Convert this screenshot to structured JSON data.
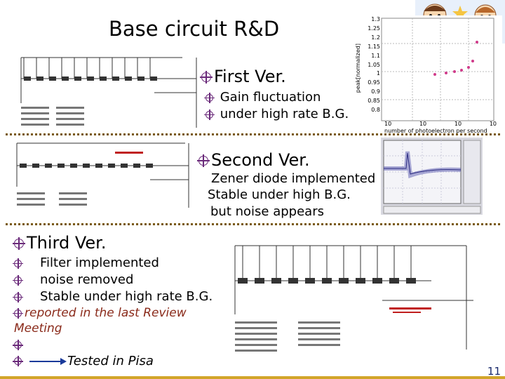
{
  "title": "Base circuit R&D",
  "first": {
    "heading": "First Ver.",
    "items": [
      "Gain fluctuation",
      "under high rate B.G."
    ],
    "plot": {
      "ylabel": "peak[normalized]",
      "xlabel": "number of photoelectron per second",
      "yticks": [
        "1.3",
        "1.25",
        "1.2",
        "1.15",
        "1.1",
        "1.05",
        "1",
        "0.95",
        "0.9",
        "0.85",
        "0.8"
      ],
      "xticks": [
        "10",
        "10",
        "10",
        "10"
      ]
    }
  },
  "second": {
    "heading": "Second Ver.",
    "lines": [
      "Zener diode implemented",
      "Stable under high B.G.",
      "but noise appears"
    ]
  },
  "third": {
    "heading": "Third Ver.",
    "items": [
      "Filter implemented",
      "noise removed",
      "Stable under high rate B.G."
    ],
    "note": "reported  in the last Review Meeting",
    "tested": "Tested in Pisa"
  },
  "page_number": "11",
  "colors": {
    "accent": "#7a5a12",
    "bar": "#d2a52a",
    "bullet": "#6a2a7a"
  }
}
